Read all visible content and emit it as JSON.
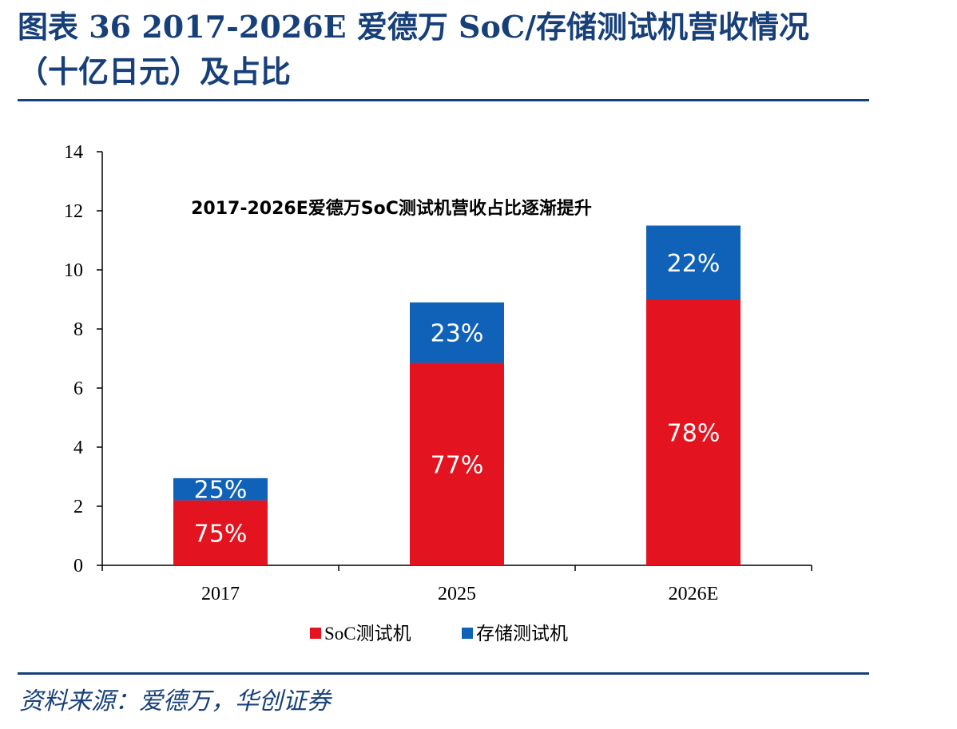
{
  "header": {
    "title_line1": "图表 36   2017-2026E 爱德万 SoC/存储测试机营收情况",
    "title_line2": "（十亿日元）及占比"
  },
  "footer": {
    "source": "资料来源：爱德万，华创证券"
  },
  "chart_data": {
    "type": "bar",
    "stacked": true,
    "title": "",
    "annotation": "2017-2026E爱德万SoC测试机营收占比逐渐提升",
    "categories": [
      "2017",
      "2025",
      "2026E"
    ],
    "series": [
      {
        "name": "SoC测试机",
        "color": "#e3141f",
        "values": [
          2.2,
          6.85,
          9.0
        ],
        "labels": [
          "75%",
          "77%",
          "78%"
        ]
      },
      {
        "name": "存储测试机",
        "color": "#0f62b8",
        "values": [
          0.75,
          2.05,
          2.5
        ],
        "labels": [
          "25%",
          "23%",
          "22%"
        ]
      }
    ],
    "ylim": [
      0,
      14
    ],
    "yticks": [
      "0",
      "2",
      "4",
      "6",
      "8",
      "10",
      "12",
      "14"
    ],
    "xlabel": "",
    "ylabel": "",
    "grid": false,
    "legend_position": "bottom"
  }
}
